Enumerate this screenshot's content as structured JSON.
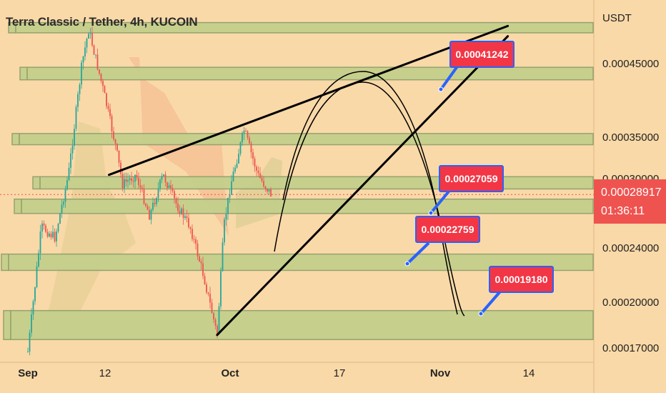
{
  "header": {
    "title": "Terra Classic / Tether, 4h, KUCOIN"
  },
  "axis": {
    "unit": "USDT",
    "y_ticks": [
      "0.00045000",
      "0.00035000",
      "0.00030000",
      "0.00024000",
      "0.00020000",
      "0.00017000"
    ],
    "x_ticks": [
      "Sep",
      "12",
      "Oct",
      "17",
      "Nov",
      "14"
    ]
  },
  "current_price": {
    "value": "0.00028917",
    "countdown": "01:36:11"
  },
  "callouts": [
    "0.00041242",
    "0.00027059",
    "0.00022759",
    "0.00019180"
  ],
  "colors": {
    "background": "#f9d9a8",
    "zone": "#c3cf8a",
    "up_candle": "#26a69a",
    "down_candle": "#ef5350",
    "callout": "#f23645",
    "callout_border": "#2962ff"
  },
  "chart_data": {
    "type": "candlestick",
    "title": "Terra Classic / Tether, 4h, KUCOIN",
    "y_unit": "USDT",
    "ylim": [
      0.000165,
      0.00051
    ],
    "x_ticks": [
      "Sep",
      "12",
      "Oct",
      "17",
      "Nov",
      "14"
    ],
    "price_path": [
      [
        "Sep 1",
        0.000168
      ],
      [
        "Sep 3",
        0.00026
      ],
      [
        "Sep 5",
        0.00025
      ],
      [
        "Sep 7",
        0.00031
      ],
      [
        "Sep 9",
        0.00045
      ],
      [
        "Sep 10",
        0.0005
      ],
      [
        "Sep 12",
        0.00042
      ],
      [
        "Sep 14",
        0.00034
      ],
      [
        "Sep 15",
        0.0003
      ],
      [
        "Sep 17",
        0.00031
      ],
      [
        "Sep 19",
        0.00027
      ],
      [
        "Sep 21",
        0.00031
      ],
      [
        "Sep 23",
        0.00028
      ],
      [
        "Sep 25",
        0.00026
      ],
      [
        "Sep 27",
        0.00022
      ],
      [
        "Sep 29",
        0.000179
      ],
      [
        "Sep 30",
        0.00026
      ],
      [
        "Oct 1",
        0.0003
      ],
      [
        "Oct 3",
        0.00036
      ],
      [
        "Oct 5",
        0.00031
      ],
      [
        "Oct 7",
        0.000289
      ]
    ],
    "support_resistance_zones": [
      [
        0.000495,
        0.00051
      ],
      [
        0.000428,
        0.000445
      ],
      [
        0.000342,
        0.000355
      ],
      [
        0.000295,
        0.000308
      ],
      [
        0.000272,
        0.000285
      ],
      [
        0.000224,
        0.000236
      ],
      [
        0.000176,
        0.000195
      ]
    ],
    "trendlines": [
      {
        "from": [
          "Sep 13",
          0.00031
        ],
        "to": [
          "Nov 11",
          0.000505
        ]
      },
      {
        "from": [
          "Sep 29",
          0.000179
        ],
        "to": [
          "Nov 11",
          0.00049
        ]
      }
    ],
    "target_labels": [
      0.00041242,
      0.00027059,
      0.00022759,
      0.0001918
    ],
    "current_price": 0.00028917
  }
}
